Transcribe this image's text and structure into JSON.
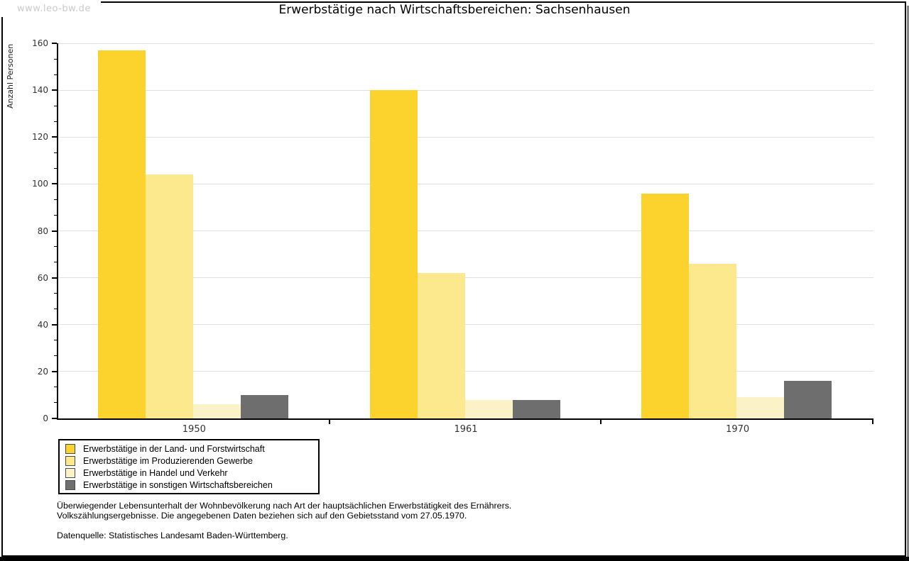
{
  "watermark": "www.leo-bw.de",
  "header": {
    "title": "Erwerbstätige nach Wirtschaftsbereichen: Sachsenhausen"
  },
  "chart_data": {
    "type": "bar",
    "title": "Erwerbstätige nach Wirtschaftsbereichen: Sachsenhausen",
    "ylabel": "Anzahl Personen",
    "xlabel": "",
    "categories": [
      "1950",
      "1961",
      "1970"
    ],
    "series": [
      {
        "name": "Erwerbstätige in der Land- und Forstwirtschaft",
        "color": "#FCD22C",
        "values": [
          157,
          140,
          96
        ]
      },
      {
        "name": "Erwerbstätige im Produzierenden Gewerbe",
        "color": "#FCE88D",
        "values": [
          104,
          62,
          66
        ]
      },
      {
        "name": "Erwerbstätige in Handel und Verkehr",
        "color": "#FBF2C7",
        "values": [
          6,
          8,
          9
        ]
      },
      {
        "name": "Erwerbstätige in sonstigen Wirtschaftsbereichen",
        "color": "#6E6E6E",
        "values": [
          10,
          8,
          16
        ]
      }
    ],
    "ylim": [
      0,
      160
    ],
    "ytick_step": 20,
    "minor_ticks_per_interval": 2,
    "grid": true,
    "gridline_color": "#E0E0E0",
    "legend_position": "bottom-left"
  },
  "footer": {
    "line1": "Überwiegender Lebensunterhalt der Wohnbevölkerung nach Art der hauptsächlichen Erwerbstätigkeit des Ernährers.",
    "line2": "Volkszählungsergebnisse. Die angegebenen Daten beziehen sich auf den Gebietsstand vom 27.05.1970.",
    "source": "Datenquelle: Statistisches Landesamt Baden-Württemberg."
  },
  "colors": {
    "axis": "#000000",
    "frame": "#000000",
    "shadow": "#848484",
    "watermark_text": "#CBCBCB"
  }
}
